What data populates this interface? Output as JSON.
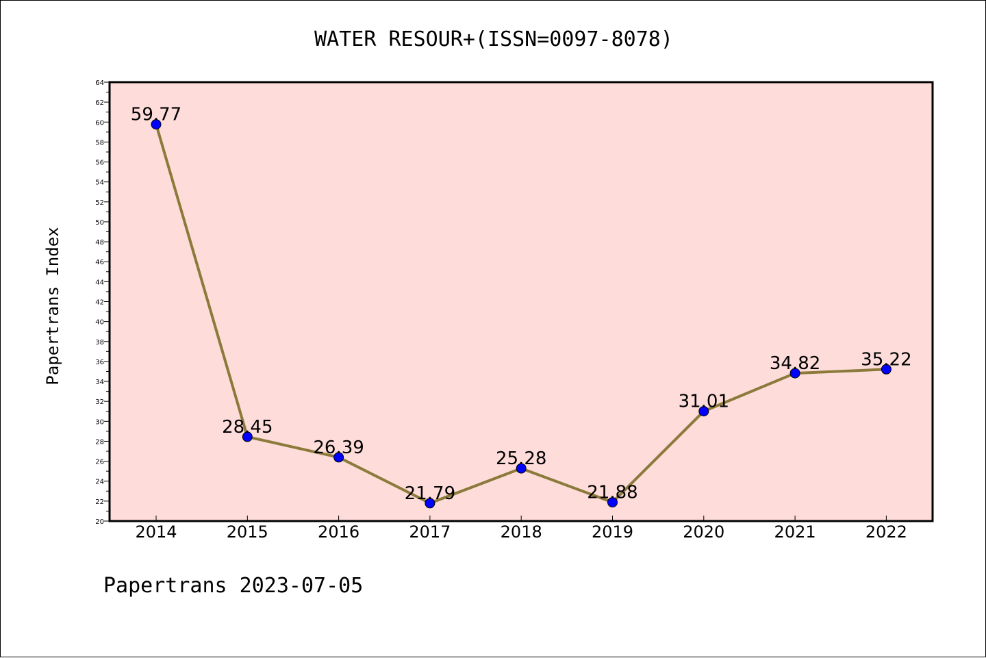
{
  "chart_data": {
    "type": "line",
    "title": "WATER RESOUR+(ISSN=0097-8078)",
    "xlabel": "",
    "ylabel": "Papertrans Index",
    "categories": [
      "2014",
      "2015",
      "2016",
      "2017",
      "2018",
      "2019",
      "2020",
      "2021",
      "2022"
    ],
    "values": [
      59.77,
      28.45,
      26.39,
      21.79,
      25.28,
      21.88,
      31.01,
      34.82,
      35.22
    ],
    "data_labels": [
      "59.77",
      "28.45",
      "26.39",
      "21.79",
      "25.28",
      "21.88",
      "31.01",
      "34.82",
      "35.22"
    ],
    "ylim": [
      20,
      64
    ],
    "yticks": [
      "20",
      "22",
      "24",
      "26",
      "28",
      "30",
      "32",
      "34",
      "36",
      "38",
      "40",
      "42",
      "44",
      "46",
      "48",
      "50",
      "52",
      "54",
      "56",
      "58",
      "60",
      "62",
      "64"
    ],
    "grid": false,
    "legend": "none",
    "colors": {
      "plot_background": "#fddcda",
      "line": "#8b7a3a",
      "marker": "#0000ff"
    }
  },
  "footer": "Papertrans 2023-07-05"
}
